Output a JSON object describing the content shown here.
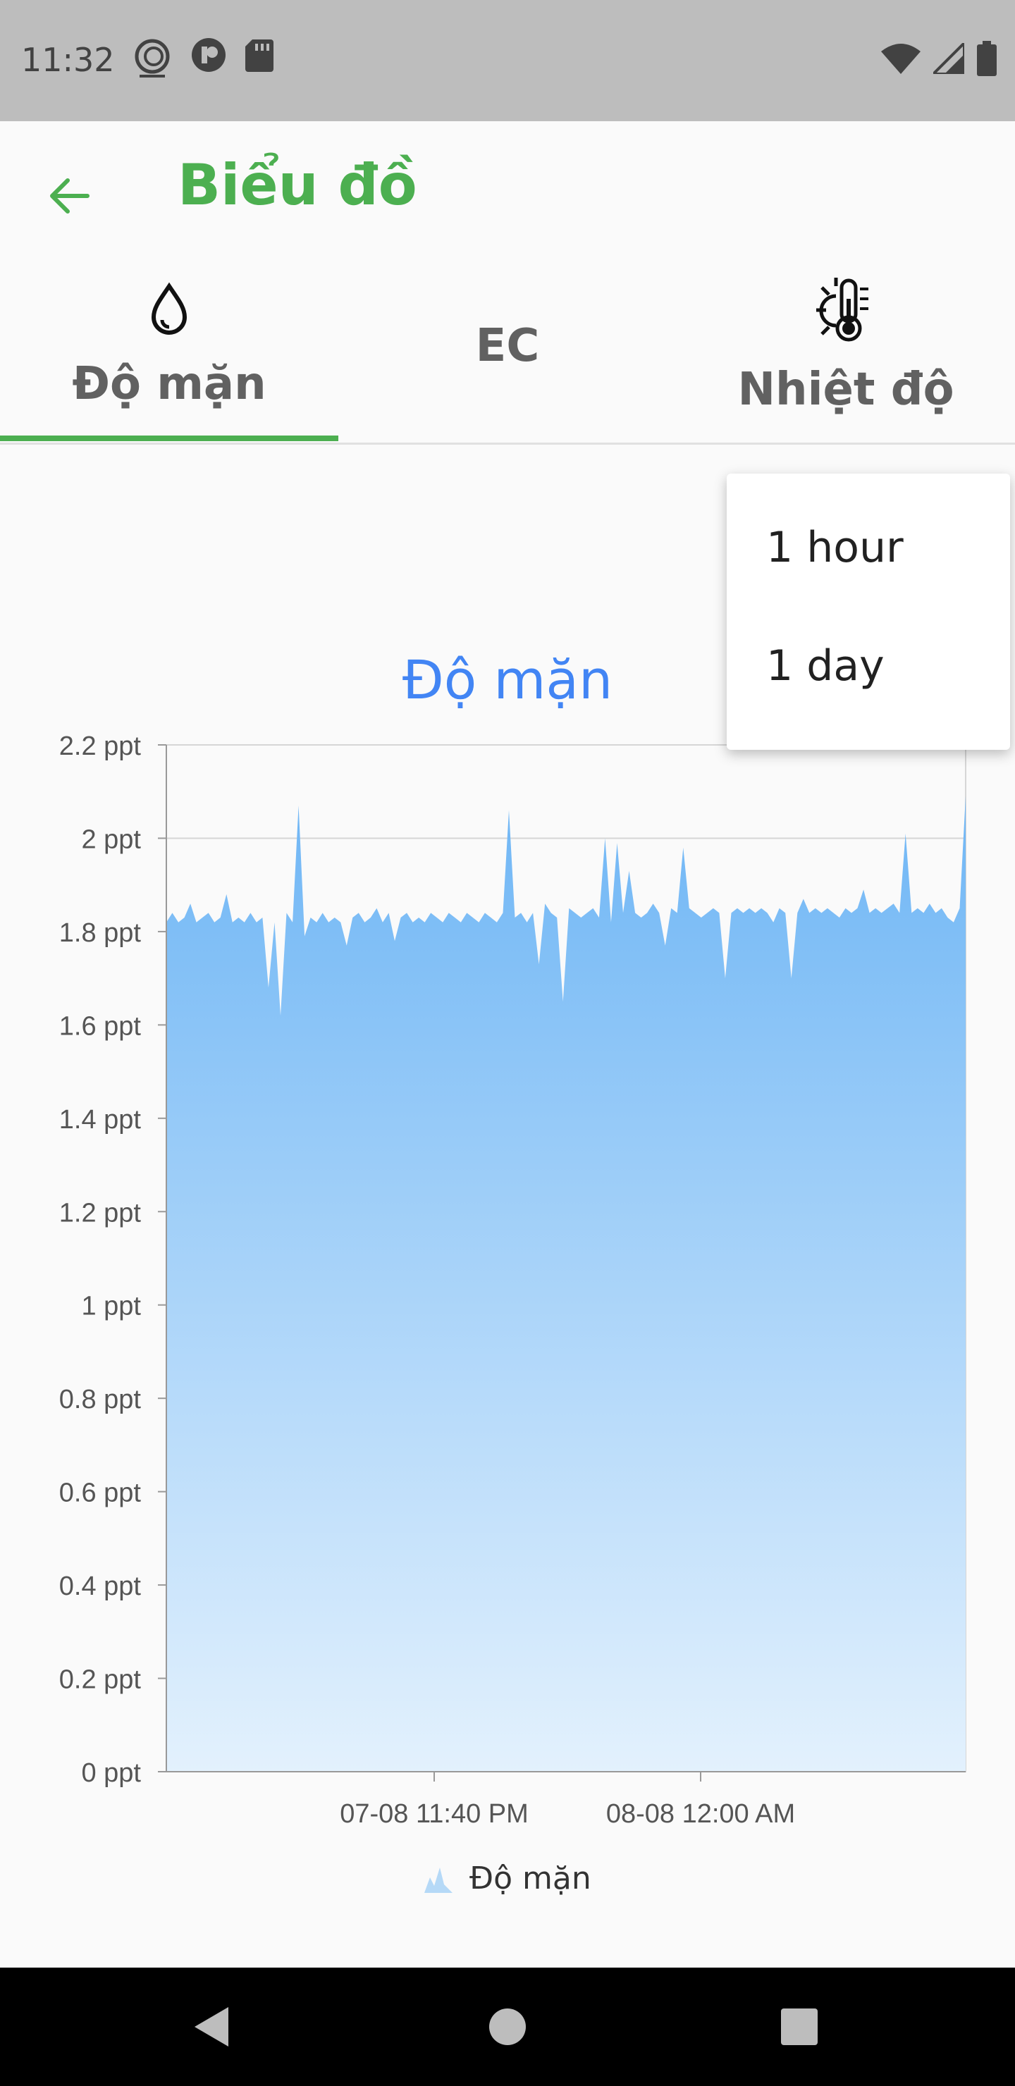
{
  "status_bar": {
    "time": "11:32",
    "icons": [
      "app-logo-icon",
      "notification-icon",
      "sd-card-icon",
      "wifi-icon",
      "signal-icon",
      "battery-icon"
    ]
  },
  "app_bar": {
    "title": "Biểu đồ",
    "back_icon": "arrow-left-icon"
  },
  "tabs": [
    {
      "label": "Độ mặn",
      "icon": "water-drop-icon",
      "selected": true
    },
    {
      "label": "EC",
      "icon": "",
      "selected": false
    },
    {
      "label": "Nhiệt độ",
      "icon": "thermometer-sun-icon",
      "selected": false
    }
  ],
  "menu": {
    "items": [
      "1 hour",
      "1 day"
    ]
  },
  "colors": {
    "accent": "#4caf50",
    "chart_title": "#4285f4",
    "area_top": "#6fb6f5",
    "area_bottom": "#e3f1fd"
  },
  "chart_data": {
    "type": "area",
    "title": "Độ mặn",
    "ylim": [
      0,
      2.2
    ],
    "y_ticks": [
      "0 ppt",
      "0.2 ppt",
      "0.4 ppt",
      "0.6 ppt",
      "0.8 ppt",
      "1 ppt",
      "1.2 ppt",
      "1.4 ppt",
      "1.6 ppt",
      "1.8 ppt",
      "2 ppt",
      "2.2 ppt"
    ],
    "x_ticks": [
      "07-08 11:40 PM",
      "08-08 12:00 AM"
    ],
    "legend": "Độ mặn",
    "series": [
      {
        "name": "Độ mặn",
        "values": [
          1.82,
          1.84,
          1.82,
          1.83,
          1.86,
          1.82,
          1.83,
          1.84,
          1.82,
          1.83,
          1.88,
          1.82,
          1.83,
          1.82,
          1.84,
          1.82,
          1.83,
          1.68,
          1.82,
          1.62,
          1.84,
          1.82,
          2.07,
          1.79,
          1.83,
          1.82,
          1.84,
          1.82,
          1.83,
          1.82,
          1.77,
          1.83,
          1.84,
          1.82,
          1.83,
          1.85,
          1.82,
          1.84,
          1.78,
          1.83,
          1.84,
          1.82,
          1.83,
          1.82,
          1.84,
          1.83,
          1.82,
          1.84,
          1.83,
          1.82,
          1.84,
          1.83,
          1.82,
          1.84,
          1.83,
          1.82,
          1.84,
          2.06,
          1.83,
          1.84,
          1.82,
          1.84,
          1.73,
          1.86,
          1.84,
          1.83,
          1.65,
          1.85,
          1.84,
          1.83,
          1.84,
          1.85,
          1.83,
          2.0,
          1.82,
          1.99,
          1.84,
          1.93,
          1.84,
          1.83,
          1.84,
          1.86,
          1.84,
          1.77,
          1.85,
          1.84,
          1.98,
          1.85,
          1.84,
          1.83,
          1.84,
          1.85,
          1.84,
          1.7,
          1.84,
          1.85,
          1.84,
          1.85,
          1.84,
          1.85,
          1.84,
          1.82,
          1.85,
          1.84,
          1.7,
          1.84,
          1.87,
          1.84,
          1.85,
          1.84,
          1.85,
          1.84,
          1.83,
          1.85,
          1.84,
          1.85,
          1.89,
          1.84,
          1.85,
          1.84,
          1.85,
          1.86,
          1.84,
          2.01,
          1.84,
          1.85,
          1.84,
          1.86,
          1.84,
          1.85,
          1.83,
          1.82,
          1.85,
          2.09
        ]
      }
    ]
  },
  "nav_bar": {
    "buttons": [
      "back-nav-icon",
      "home-nav-icon",
      "recents-nav-icon"
    ]
  }
}
